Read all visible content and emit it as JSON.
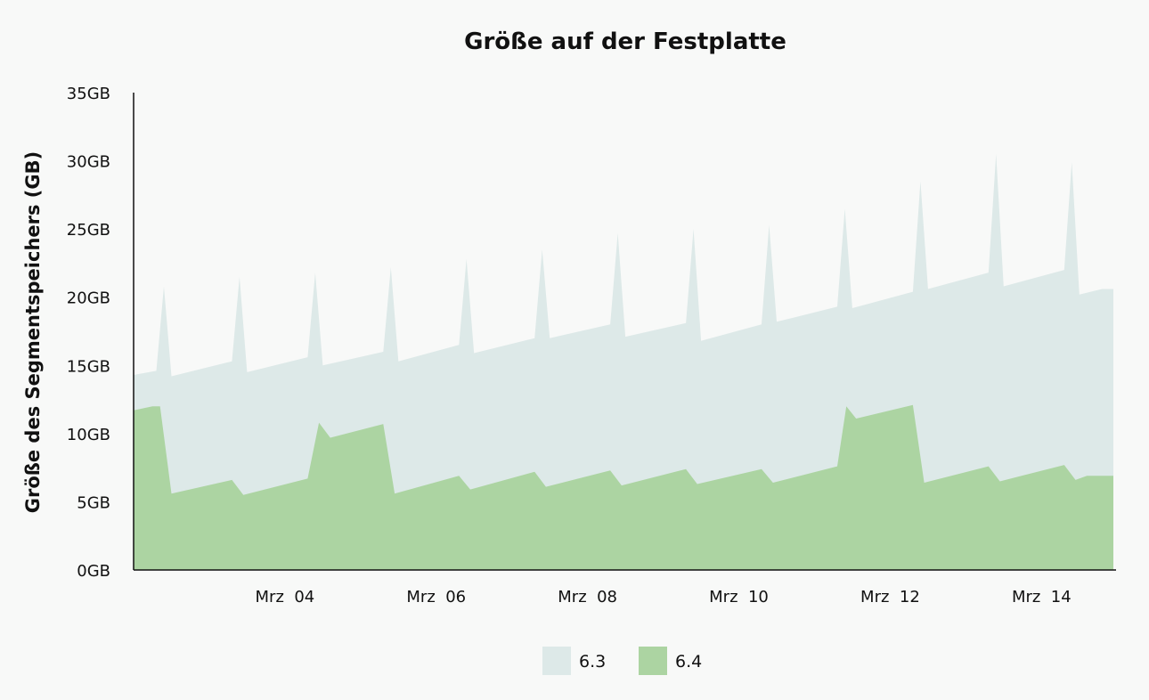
{
  "chart_data": {
    "type": "area",
    "title": "Größe auf der Festplatte",
    "ylabel": "Größe des Segmentspeichers (GB)",
    "xlabel": "",
    "ylim": [
      0,
      35
    ],
    "y_ticks": [
      "0GB",
      "5GB",
      "10GB",
      "15GB",
      "20GB",
      "25GB",
      "30GB",
      "35GB"
    ],
    "x_ticks": [
      {
        "label": "Mrz  04",
        "x": 4
      },
      {
        "label": "Mrz  06",
        "x": 6
      },
      {
        "label": "Mrz  08",
        "x": 8
      },
      {
        "label": "Mrz  10",
        "x": 10
      },
      {
        "label": "Mrz  12",
        "x": 12
      },
      {
        "label": "Mrz  14",
        "x": 14
      }
    ],
    "xlim": [
      2.0,
      14.95
    ],
    "legend_position": "bottom",
    "series": [
      {
        "name": "6.3",
        "color": "#dde9e8",
        "points": [
          [
            2.0,
            14.3
          ],
          [
            2.3,
            14.6
          ],
          [
            2.4,
            20.8
          ],
          [
            2.5,
            14.2
          ],
          [
            3.3,
            15.3
          ],
          [
            3.4,
            21.5
          ],
          [
            3.5,
            14.5
          ],
          [
            4.3,
            15.6
          ],
          [
            4.4,
            21.8
          ],
          [
            4.5,
            15.0
          ],
          [
            5.3,
            16.0
          ],
          [
            5.4,
            22.2
          ],
          [
            5.5,
            15.3
          ],
          [
            6.3,
            16.5
          ],
          [
            6.4,
            22.8
          ],
          [
            6.5,
            15.9
          ],
          [
            7.3,
            17.0
          ],
          [
            7.4,
            23.5
          ],
          [
            7.5,
            17.0
          ],
          [
            8.3,
            18.0
          ],
          [
            8.4,
            24.7
          ],
          [
            8.5,
            17.1
          ],
          [
            9.3,
            18.1
          ],
          [
            9.4,
            25.0
          ],
          [
            9.5,
            16.8
          ],
          [
            10.3,
            18.0
          ],
          [
            10.4,
            25.3
          ],
          [
            10.5,
            18.2
          ],
          [
            11.3,
            19.3
          ],
          [
            11.4,
            26.5
          ],
          [
            11.5,
            19.2
          ],
          [
            12.3,
            20.4
          ],
          [
            12.4,
            28.5
          ],
          [
            12.5,
            20.6
          ],
          [
            13.3,
            21.8
          ],
          [
            13.4,
            30.5
          ],
          [
            13.5,
            20.8
          ],
          [
            14.3,
            22.0
          ],
          [
            14.4,
            29.9
          ],
          [
            14.5,
            20.2
          ],
          [
            14.8,
            20.6
          ],
          [
            14.95,
            20.6
          ]
        ]
      },
      {
        "name": "6.4",
        "color": "#acd4a2",
        "points": [
          [
            2.0,
            11.7
          ],
          [
            2.25,
            12.0
          ],
          [
            2.35,
            12.0
          ],
          [
            2.5,
            5.6
          ],
          [
            3.3,
            6.6
          ],
          [
            3.45,
            5.5
          ],
          [
            4.3,
            6.7
          ],
          [
            4.45,
            10.8
          ],
          [
            4.6,
            9.7
          ],
          [
            5.3,
            10.7
          ],
          [
            5.45,
            5.6
          ],
          [
            6.3,
            6.9
          ],
          [
            6.45,
            5.9
          ],
          [
            7.3,
            7.2
          ],
          [
            7.45,
            6.1
          ],
          [
            8.3,
            7.3
          ],
          [
            8.45,
            6.2
          ],
          [
            9.3,
            7.4
          ],
          [
            9.45,
            6.3
          ],
          [
            10.3,
            7.4
          ],
          [
            10.45,
            6.4
          ],
          [
            11.3,
            7.6
          ],
          [
            11.42,
            12.0
          ],
          [
            11.55,
            11.1
          ],
          [
            12.3,
            12.1
          ],
          [
            12.45,
            6.4
          ],
          [
            13.3,
            7.6
          ],
          [
            13.45,
            6.5
          ],
          [
            14.3,
            7.7
          ],
          [
            14.45,
            6.6
          ],
          [
            14.6,
            6.9
          ],
          [
            14.95,
            6.9
          ]
        ]
      }
    ]
  }
}
